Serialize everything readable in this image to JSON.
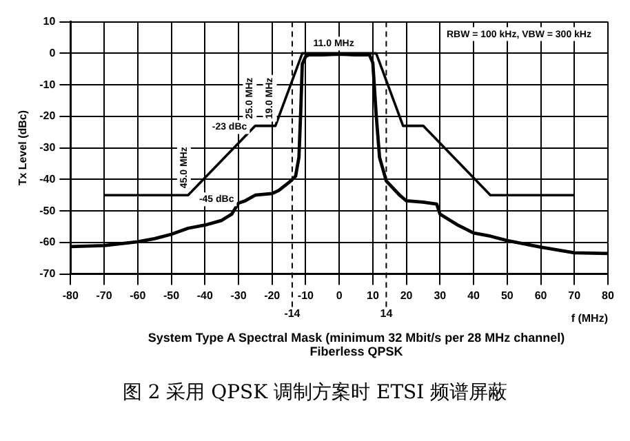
{
  "chart_data": {
    "type": "line",
    "title": "System Type A Spectral Mask (minimum 32 Mbit/s per 28 MHz channel)",
    "subtitle": "Fiberless QPSK",
    "xlabel": "f (MHz)",
    "ylabel": "Tx Level (dBc)",
    "series": [
      {
        "color": "#000000",
        "x": [
          -70,
          -45,
          -25,
          -19,
          -11,
          11,
          19,
          25,
          45,
          70
        ],
        "values": [
          -45,
          -45,
          -23,
          -23,
          0,
          0,
          -23,
          -23,
          -45,
          -45
        ]
      },
      {
        "color": "#000000",
        "x": [
          -80,
          -70,
          -60,
          -55,
          -50,
          -45,
          -40,
          -35,
          -32,
          -30,
          -28,
          -25,
          -20,
          -18,
          -15,
          -13,
          -12,
          -11.5,
          -11,
          -10,
          -9,
          -5,
          0,
          5,
          9,
          10,
          11,
          12,
          14,
          18,
          20,
          25,
          29,
          30,
          35,
          40,
          45,
          50,
          60,
          70,
          80
        ],
        "values": [
          -61.3,
          -61,
          -59.8,
          -58.8,
          -57.4,
          -55.5,
          -54.5,
          -53,
          -51,
          -47.5,
          -46.8,
          -45,
          -44.5,
          -43.5,
          -41,
          -39,
          -33,
          -19.5,
          -3.4,
          -1,
          -0.5,
          -0.5,
          -0.3,
          -0.5,
          -0.5,
          -3,
          -19.5,
          -33,
          -40.5,
          -45,
          -46.8,
          -47.2,
          -47.8,
          -51,
          -54.3,
          -57,
          -58,
          -59.4,
          -61.5,
          -63.3,
          -63.5
        ]
      }
    ],
    "xlim": [
      -80,
      80
    ],
    "xticks": [
      -80,
      -70,
      -60,
      -50,
      -40,
      -30,
      -20,
      -10,
      0,
      10,
      20,
      30,
      40,
      50,
      60,
      70,
      80
    ],
    "ylim": [
      -70,
      10
    ],
    "yticks": [
      -70,
      -60,
      -50,
      -40,
      -30,
      -20,
      -10,
      0,
      10
    ],
    "grid": true,
    "legend": false,
    "marker": "none",
    "line_style": "solid",
    "ref_lines": [
      {
        "axis": "x",
        "value": -14,
        "label": "-14",
        "line_style": "dashed"
      },
      {
        "axis": "x",
        "value": 14,
        "label": "14",
        "line_style": "dashed"
      }
    ],
    "annotations": [
      "RBW = 100 kHz, VBW = 300 kHz",
      {
        "text": "11.0 MHz",
        "x": -11,
        "y": 0
      },
      {
        "text": "25.0 MHz",
        "x": -25,
        "y": -23
      },
      {
        "text": "19.0 MHz",
        "x": -19,
        "y": -23
      },
      {
        "text": "-23 dBc",
        "x": -25,
        "y": -23
      },
      {
        "text": "45.0 MHz",
        "x": -45,
        "y": -45
      },
      {
        "text": "-45 dBc",
        "x": -45,
        "y": -45
      },
      "图 2 采用 QPSK 调制方案时 ETSI 频谱屏蔽"
    ]
  }
}
